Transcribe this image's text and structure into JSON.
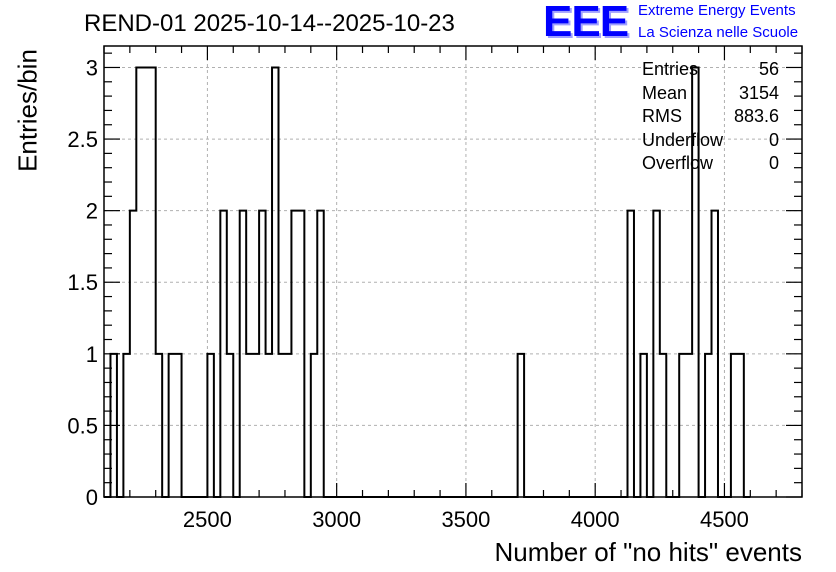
{
  "header": {
    "title": "REND-01 2025-10-14--2025-10-23"
  },
  "logo": {
    "mark": "EEE",
    "line1": "Extreme Energy Events",
    "line2": "La Scienza nelle Scuole",
    "color": "#0000ff"
  },
  "stats": {
    "entries_label": "Entries",
    "entries_value": "56",
    "mean_label": "Mean",
    "mean_value": "3154",
    "rms_label": "RMS",
    "rms_value": "883.6",
    "underflow_label": "Underflow",
    "underflow_value": "0",
    "overflow_label": "Overflow",
    "overflow_value": "0"
  },
  "chart_data": {
    "type": "histogram",
    "title": "REND-01 2025-10-14--2025-10-23",
    "xlabel": "Number of \"no hits\" events",
    "ylabel": "Entries/bin",
    "xlim": [
      2100,
      4800
    ],
    "ylim": [
      0,
      3.15
    ],
    "bin_width": 25,
    "x_ticks": [
      2500,
      3000,
      3500,
      4000,
      4500
    ],
    "y_ticks": [
      0,
      0.5,
      1,
      1.5,
      2,
      2.5,
      3
    ],
    "y_tick_labels": [
      "0",
      "0.5",
      "1",
      "1.5",
      "2",
      "2.5",
      "3"
    ],
    "grid": true,
    "line_color": "#000000",
    "bins": [
      {
        "x": 2100,
        "y": 0
      },
      {
        "x": 2125,
        "y": 1
      },
      {
        "x": 2150,
        "y": 0
      },
      {
        "x": 2175,
        "y": 1
      },
      {
        "x": 2200,
        "y": 2
      },
      {
        "x": 2225,
        "y": 3
      },
      {
        "x": 2250,
        "y": 3
      },
      {
        "x": 2275,
        "y": 3
      },
      {
        "x": 2300,
        "y": 1
      },
      {
        "x": 2325,
        "y": 0
      },
      {
        "x": 2350,
        "y": 1
      },
      {
        "x": 2375,
        "y": 1
      },
      {
        "x": 2400,
        "y": 0
      },
      {
        "x": 2425,
        "y": 0
      },
      {
        "x": 2450,
        "y": 0
      },
      {
        "x": 2475,
        "y": 0
      },
      {
        "x": 2500,
        "y": 1
      },
      {
        "x": 2525,
        "y": 0
      },
      {
        "x": 2550,
        "y": 2
      },
      {
        "x": 2575,
        "y": 1
      },
      {
        "x": 2600,
        "y": 0
      },
      {
        "x": 2625,
        "y": 2
      },
      {
        "x": 2650,
        "y": 1
      },
      {
        "x": 2675,
        "y": 1
      },
      {
        "x": 2700,
        "y": 2
      },
      {
        "x": 2725,
        "y": 1
      },
      {
        "x": 2750,
        "y": 3
      },
      {
        "x": 2775,
        "y": 1
      },
      {
        "x": 2800,
        "y": 1
      },
      {
        "x": 2825,
        "y": 2
      },
      {
        "x": 2850,
        "y": 2
      },
      {
        "x": 2875,
        "y": 0
      },
      {
        "x": 2900,
        "y": 1
      },
      {
        "x": 2925,
        "y": 2
      },
      {
        "x": 2950,
        "y": 0
      },
      {
        "x": 3700,
        "y": 1
      },
      {
        "x": 4125,
        "y": 2
      },
      {
        "x": 4150,
        "y": 0
      },
      {
        "x": 4175,
        "y": 1
      },
      {
        "x": 4200,
        "y": 0
      },
      {
        "x": 4225,
        "y": 2
      },
      {
        "x": 4250,
        "y": 1
      },
      {
        "x": 4275,
        "y": 0
      },
      {
        "x": 4300,
        "y": 0
      },
      {
        "x": 4325,
        "y": 1
      },
      {
        "x": 4350,
        "y": 1
      },
      {
        "x": 4375,
        "y": 3
      },
      {
        "x": 4400,
        "y": 0
      },
      {
        "x": 4425,
        "y": 1
      },
      {
        "x": 4450,
        "y": 2
      },
      {
        "x": 4475,
        "y": 0
      },
      {
        "x": 4500,
        "y": 0
      },
      {
        "x": 4525,
        "y": 1
      },
      {
        "x": 4550,
        "y": 1
      },
      {
        "x": 4575,
        "y": 0
      }
    ]
  }
}
